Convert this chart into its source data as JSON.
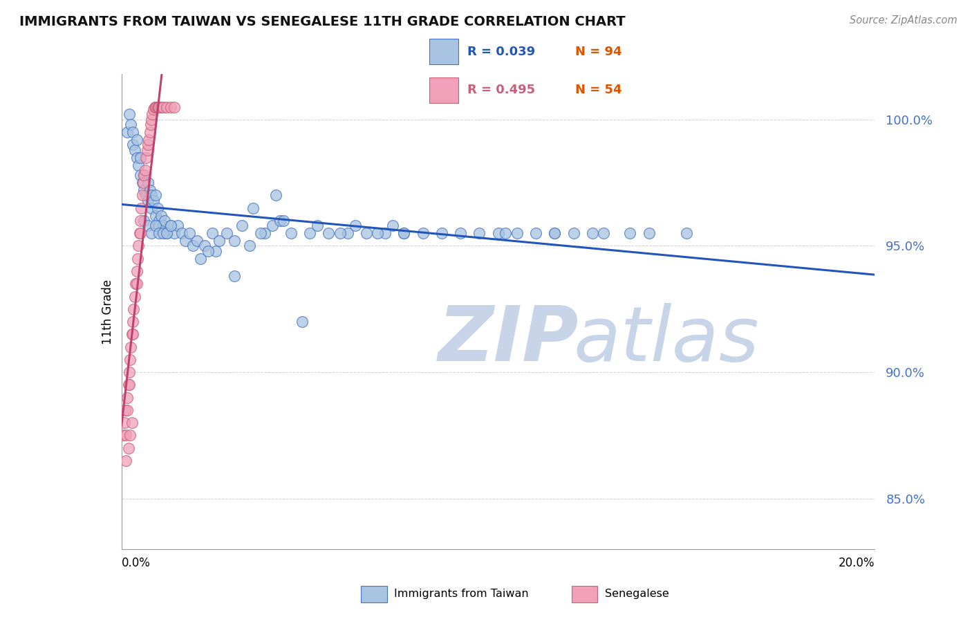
{
  "title": "IMMIGRANTS FROM TAIWAN VS SENEGALESE 11TH GRADE CORRELATION CHART",
  "source_text": "Source: ZipAtlas.com",
  "ylabel": "11th Grade",
  "y_ticks": [
    85.0,
    90.0,
    95.0,
    100.0
  ],
  "y_tick_labels": [
    "85.0%",
    "90.0%",
    "95.0%",
    "100.0%"
  ],
  "xmin": 0.0,
  "xmax": 20.0,
  "ymin": 83.0,
  "ymax": 101.8,
  "legend_r1": "R = 0.039",
  "legend_n1": "N = 94",
  "legend_r2": "R = 0.495",
  "legend_n2": "N = 54",
  "taiwan_color": "#a8c4e0",
  "senegal_color": "#f0a0b8",
  "taiwan_edge_color": "#4472c4",
  "senegal_edge_color": "#c8607a",
  "taiwan_line_color": "#2255bb",
  "senegal_line_color": "#c04070",
  "taiwan_x": [
    0.15,
    0.2,
    0.25,
    0.3,
    0.3,
    0.35,
    0.4,
    0.4,
    0.45,
    0.5,
    0.5,
    0.55,
    0.6,
    0.6,
    0.65,
    0.7,
    0.7,
    0.75,
    0.8,
    0.8,
    0.85,
    0.9,
    0.9,
    0.95,
    1.0,
    1.0,
    1.05,
    1.1,
    1.15,
    1.2,
    1.3,
    1.4,
    1.5,
    1.6,
    1.7,
    1.8,
    1.9,
    2.0,
    2.2,
    2.4,
    2.6,
    2.8,
    3.0,
    3.2,
    3.4,
    3.8,
    4.0,
    4.2,
    4.5,
    5.0,
    5.2,
    5.5,
    6.0,
    6.5,
    7.0,
    7.2,
    7.5,
    8.0,
    9.0,
    10.0,
    10.5,
    11.0,
    11.5,
    12.0,
    12.8,
    13.5,
    14.0,
    15.0,
    3.5,
    4.1,
    0.6,
    0.7,
    0.8,
    0.9,
    1.0,
    1.1,
    1.2,
    1.3,
    2.5,
    3.0,
    5.8,
    6.2,
    6.8,
    7.5,
    8.5,
    9.5,
    10.2,
    11.5,
    12.5,
    4.8,
    2.1,
    2.3,
    3.7,
    4.3
  ],
  "taiwan_y": [
    99.5,
    100.2,
    99.8,
    99.0,
    99.5,
    98.8,
    99.2,
    98.5,
    98.2,
    97.8,
    98.5,
    97.5,
    97.2,
    97.8,
    97.0,
    97.5,
    96.8,
    97.2,
    96.5,
    97.0,
    96.8,
    96.2,
    97.0,
    96.5,
    96.0,
    95.8,
    96.2,
    95.8,
    96.0,
    95.5,
    95.8,
    95.5,
    95.8,
    95.5,
    95.2,
    95.5,
    95.0,
    95.2,
    95.0,
    95.5,
    95.2,
    95.5,
    95.2,
    95.8,
    95.0,
    95.5,
    95.8,
    96.0,
    95.5,
    95.5,
    95.8,
    95.5,
    95.5,
    95.5,
    95.5,
    95.8,
    95.5,
    95.5,
    95.5,
    95.5,
    95.5,
    95.5,
    95.5,
    95.5,
    95.5,
    95.5,
    95.5,
    95.5,
    96.5,
    97.0,
    96.0,
    95.8,
    95.5,
    95.8,
    95.5,
    95.5,
    95.5,
    95.8,
    94.8,
    93.8,
    95.5,
    95.8,
    95.5,
    95.5,
    95.5,
    95.5,
    95.5,
    95.5,
    95.5,
    92.0,
    94.5,
    94.8,
    95.5,
    96.0
  ],
  "senegal_x": [
    0.05,
    0.08,
    0.1,
    0.12,
    0.15,
    0.15,
    0.18,
    0.2,
    0.2,
    0.22,
    0.25,
    0.28,
    0.3,
    0.3,
    0.32,
    0.35,
    0.38,
    0.4,
    0.4,
    0.42,
    0.45,
    0.48,
    0.5,
    0.5,
    0.52,
    0.55,
    0.58,
    0.6,
    0.62,
    0.65,
    0.68,
    0.7,
    0.72,
    0.75,
    0.78,
    0.8,
    0.82,
    0.85,
    0.88,
    0.9,
    0.92,
    0.95,
    0.98,
    1.0,
    1.0,
    1.05,
    1.1,
    1.2,
    1.3,
    1.4,
    0.12,
    0.18,
    0.22,
    0.28
  ],
  "senegal_y": [
    87.5,
    88.0,
    88.5,
    87.5,
    89.0,
    88.5,
    89.5,
    90.0,
    89.5,
    90.5,
    91.0,
    91.5,
    92.0,
    91.5,
    92.5,
    93.0,
    93.5,
    94.0,
    93.5,
    94.5,
    95.0,
    95.5,
    96.0,
    95.5,
    96.5,
    97.0,
    97.5,
    97.8,
    98.0,
    98.5,
    98.8,
    99.0,
    99.2,
    99.5,
    99.8,
    100.0,
    100.2,
    100.4,
    100.5,
    100.5,
    100.5,
    100.5,
    100.5,
    100.5,
    100.5,
    100.5,
    100.5,
    100.5,
    100.5,
    100.5,
    86.5,
    87.0,
    87.5,
    88.0
  ],
  "watermark_zip": "ZIP",
  "watermark_atlas": "atlas",
  "watermark_color": "#c8d4e8",
  "background_color": "#ffffff",
  "grid_color": "#cccccc",
  "marker_size": 130
}
